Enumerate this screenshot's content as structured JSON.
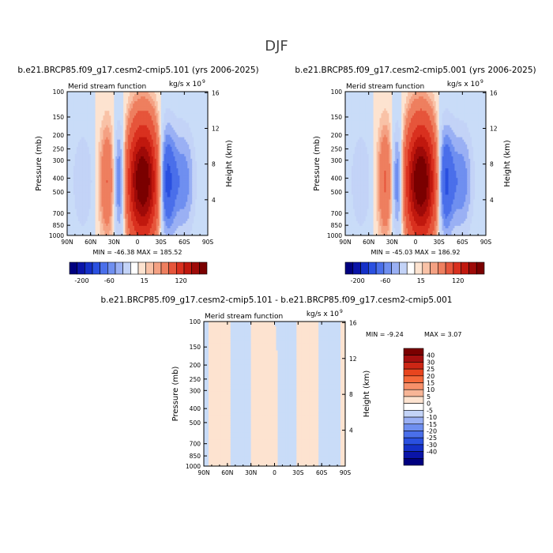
{
  "page_title": "DJF",
  "chart_data": [
    {
      "type": "heatmap",
      "title": "b.e21.BRCP85.f09_g17.cesm2-cmip5.101 (yrs 2006-2025)",
      "subtitle_left": "Merid stream function",
      "units": "kg/s x 10",
      "units_exp": "9",
      "ylabel": "Pressure (mb)",
      "ylabel_right": "Height (km)",
      "x_ticks": [
        "90N",
        "60N",
        "30N",
        "0",
        "30S",
        "60S",
        "90S"
      ],
      "y_ticks": [
        "100",
        "150",
        "200",
        "250",
        "300",
        "400",
        "500",
        "700",
        "850",
        "1000"
      ],
      "y_right_ticks": [
        "16",
        "12",
        "8",
        "4"
      ],
      "stats": "MIN = -46.38   MAX = 185.52",
      "colorbar_labels": [
        "-200",
        "-60",
        "15",
        "120"
      ],
      "data": [
        {
          "lat_center": -7,
          "half_width": 19,
          "peak": 185.52
        },
        {
          "lat_center": 22,
          "half_width": 10,
          "peak": -38
        },
        {
          "lat_center": 38,
          "half_width": 10,
          "peak": 32
        },
        {
          "lat_center": -35,
          "half_width": 13,
          "peak": -46.38
        },
        {
          "lat_center": -60,
          "half_width": 14,
          "peak": -18
        },
        {
          "lat_center": 70,
          "half_width": 14,
          "peak": -10
        }
      ]
    },
    {
      "type": "heatmap",
      "title": "b.e21.BRCP85.f09_g17.cesm2-cmip5.001 (yrs 2006-2025)",
      "subtitle_left": "Merid stream function",
      "units": "kg/s x 10",
      "units_exp": "9",
      "ylabel": "Pressure (mb)",
      "ylabel_right": "Height (km)",
      "x_ticks": [
        "90N",
        "60N",
        "30N",
        "0",
        "30S",
        "60S",
        "90S"
      ],
      "y_ticks": [
        "100",
        "150",
        "200",
        "250",
        "300",
        "400",
        "500",
        "700",
        "850",
        "1000"
      ],
      "y_right_ticks": [
        "16",
        "12",
        "8",
        "4"
      ],
      "stats": "MIN = -45.03   MAX = 186.92",
      "colorbar_labels": [
        "-200",
        "-60",
        "15",
        "120"
      ],
      "data": [
        {
          "lat_center": -7,
          "half_width": 19,
          "peak": 186.92
        },
        {
          "lat_center": 22,
          "half_width": 10,
          "peak": -37
        },
        {
          "lat_center": 38,
          "half_width": 10,
          "peak": 33
        },
        {
          "lat_center": -35,
          "half_width": 13,
          "peak": -45.03
        },
        {
          "lat_center": -60,
          "half_width": 14,
          "peak": -18
        },
        {
          "lat_center": 70,
          "half_width": 14,
          "peak": -10
        }
      ]
    },
    {
      "type": "heatmap",
      "title": "b.e21.BRCP85.f09_g17.cesm2-cmip5.101 - b.e21.BRCP85.f09_g17.cesm2-cmip5.001",
      "subtitle_left": "Merid stream function",
      "units": "kg/s x 10",
      "units_exp": "9",
      "ylabel": "Pressure (mb)",
      "ylabel_right": "Height (km)",
      "x_ticks": [
        "90N",
        "60N",
        "30N",
        "0",
        "30S",
        "60S",
        "90S"
      ],
      "y_ticks": [
        "100",
        "150",
        "200",
        "250",
        "300",
        "400",
        "500",
        "700",
        "850",
        "1000"
      ],
      "y_right_ticks": [
        "16",
        "12",
        "8",
        "4"
      ],
      "stats_min": "MIN =   -9.24",
      "stats_max": "MAX =    3.07",
      "colorbar_labels": [
        "40",
        "30",
        "25",
        "20",
        "15",
        "10",
        "5",
        "0",
        "-5",
        "-10",
        "-15",
        "-20",
        "-25",
        "-30",
        "-40"
      ],
      "data": [
        {
          "lat_center": 72,
          "half_width": 4,
          "peak": 3.07
        },
        {
          "lat_center": 20,
          "half_width": 8,
          "peak": 2
        },
        {
          "lat_center": -5,
          "half_width": 4,
          "peak": 1.5
        },
        {
          "lat_center": -45,
          "half_width": 5,
          "peak": 2
        },
        {
          "lat_center": -10,
          "half_width": 3,
          "peak": -9.24
        }
      ]
    }
  ],
  "colors": {
    "main_scale": [
      "#00007f",
      "#0a14a8",
      "#1530c8",
      "#2a50e0",
      "#4a6fea",
      "#6f8ff0",
      "#9ab0f4",
      "#c3d3f7",
      "#ffffff",
      "#fde3d0",
      "#f9c2a7",
      "#f4a183",
      "#ee7f5f",
      "#e6553b",
      "#d9301f",
      "#c0180e",
      "#9e0a08",
      "#7a0000"
    ],
    "diff_scale": [
      "#7a0000",
      "#a50f0f",
      "#cc2615",
      "#e8451e",
      "#f5683a",
      "#f7906a",
      "#f7b596",
      "#fde3d0",
      "#ffffff",
      "#c3d3f7",
      "#9ab0f4",
      "#6f8ff0",
      "#4a6fea",
      "#2a50e0",
      "#1530c8",
      "#0a14a8",
      "#00007f"
    ],
    "panel_bg": "#fde3d0",
    "neg_light": "#c9dcf8"
  }
}
